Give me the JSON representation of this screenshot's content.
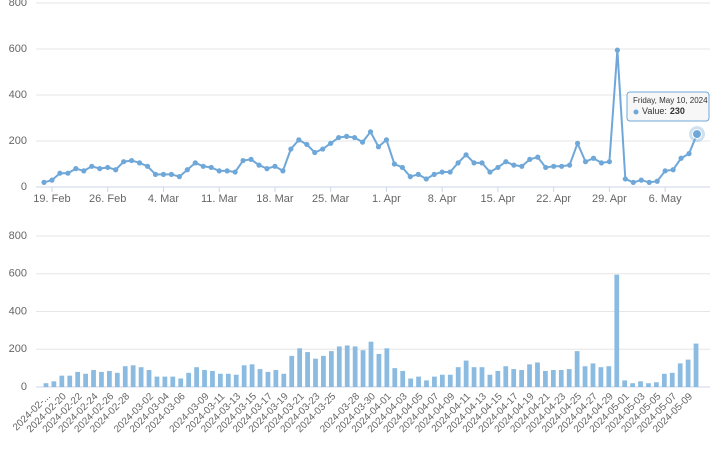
{
  "chart_data": [
    {
      "type": "line",
      "color": "#6fa8d8",
      "grid": true,
      "x": [
        "2024-02-18",
        "2024-02-19",
        "2024-02-20",
        "2024-02-21",
        "2024-02-22",
        "2024-02-23",
        "2024-02-24",
        "2024-02-25",
        "2024-02-26",
        "2024-02-27",
        "2024-02-28",
        "2024-02-29",
        "2024-03-01",
        "2024-03-02",
        "2024-03-03",
        "2024-03-04",
        "2024-03-05",
        "2024-03-06",
        "2024-03-07",
        "2024-03-08",
        "2024-03-09",
        "2024-03-10",
        "2024-03-11",
        "2024-03-12",
        "2024-03-13",
        "2024-03-14",
        "2024-03-15",
        "2024-03-16",
        "2024-03-17",
        "2024-03-18",
        "2024-03-19",
        "2024-03-20",
        "2024-03-21",
        "2024-03-22",
        "2024-03-23",
        "2024-03-24",
        "2024-03-25",
        "2024-03-26",
        "2024-03-27",
        "2024-03-28",
        "2024-03-29",
        "2024-03-30",
        "2024-03-31",
        "2024-04-01",
        "2024-04-02",
        "2024-04-03",
        "2024-04-04",
        "2024-04-05",
        "2024-04-06",
        "2024-04-07",
        "2024-04-08",
        "2024-04-09",
        "2024-04-10",
        "2024-04-11",
        "2024-04-12",
        "2024-04-13",
        "2024-04-14",
        "2024-04-15",
        "2024-04-16",
        "2024-04-17",
        "2024-04-18",
        "2024-04-19",
        "2024-04-20",
        "2024-04-21",
        "2024-04-22",
        "2024-04-23",
        "2024-04-24",
        "2024-04-25",
        "2024-04-26",
        "2024-04-27",
        "2024-04-28",
        "2024-04-29",
        "2024-04-30",
        "2024-05-01",
        "2024-05-02",
        "2024-05-03",
        "2024-05-04",
        "2024-05-05",
        "2024-05-06",
        "2024-05-07",
        "2024-05-08",
        "2024-05-09",
        "2024-05-10"
      ],
      "values": [
        20,
        30,
        60,
        60,
        80,
        70,
        90,
        80,
        85,
        75,
        110,
        115,
        105,
        90,
        55,
        55,
        55,
        45,
        75,
        105,
        90,
        85,
        70,
        70,
        65,
        115,
        120,
        95,
        80,
        90,
        70,
        165,
        205,
        185,
        150,
        165,
        190,
        215,
        220,
        215,
        195,
        240,
        175,
        205,
        100,
        85,
        45,
        55,
        35,
        55,
        65,
        65,
        105,
        140,
        105,
        105,
        65,
        85,
        110,
        95,
        90,
        120,
        130,
        85,
        90,
        90,
        95,
        190,
        110,
        125,
        105,
        110,
        595,
        35,
        20,
        30,
        20,
        25,
        70,
        75,
        125,
        145,
        230
      ],
      "ylim": [
        0,
        800
      ],
      "yticks": [
        0,
        200,
        400,
        600,
        800
      ],
      "xticks": [
        {
          "value": "2024-02-19",
          "label": "19. Feb"
        },
        {
          "value": "2024-02-26",
          "label": "26. Feb"
        },
        {
          "value": "2024-03-04",
          "label": "4. Mar"
        },
        {
          "value": "2024-03-11",
          "label": "11. Mar"
        },
        {
          "value": "2024-03-18",
          "label": "18. Mar"
        },
        {
          "value": "2024-03-25",
          "label": "25. Mar"
        },
        {
          "value": "2024-04-01",
          "label": "1. Apr"
        },
        {
          "value": "2024-04-08",
          "label": "8. Apr"
        },
        {
          "value": "2024-04-15",
          "label": "15. Apr"
        },
        {
          "value": "2024-04-22",
          "label": "22. Apr"
        },
        {
          "value": "2024-04-29",
          "label": "29. Apr"
        },
        {
          "value": "2024-05-06",
          "label": "6. May"
        }
      ],
      "tooltip": {
        "title": "Friday, May 10, 2024",
        "label": "Value:"
      }
    },
    {
      "type": "bar",
      "color": "#8bbbe0",
      "grid": true,
      "categories": [
        "2024-02-...",
        null,
        "2024-02-20",
        null,
        "2024-02-22",
        null,
        "2024-02-24",
        null,
        "2024-02-26",
        null,
        "2024-02-28",
        null,
        null,
        "2024-03-02",
        null,
        "2024-03-04",
        null,
        "2024-03-06",
        null,
        null,
        "2024-03-09",
        null,
        "2024-03-11",
        null,
        "2024-03-13",
        null,
        "2024-03-15",
        null,
        "2024-03-17",
        null,
        "2024-03-19",
        null,
        "2024-03-21",
        null,
        "2024-03-23",
        null,
        "2024-03-25",
        null,
        null,
        "2024-03-28",
        null,
        "2024-03-30",
        null,
        "2024-04-01",
        null,
        "2024-04-03",
        null,
        "2024-04-05",
        null,
        "2024-04-07",
        null,
        "2024-04-09",
        null,
        "2024-04-11",
        null,
        "2024-04-13",
        null,
        "2024-04-15",
        null,
        "2024-04-17",
        null,
        "2024-04-19",
        null,
        "2024-04-21",
        null,
        "2024-04-23",
        null,
        "2024-04-25",
        null,
        "2024-04-27",
        null,
        "2024-04-29",
        null,
        "2024-05-01",
        null,
        "2024-05-03",
        null,
        "2024-05-05",
        null,
        "2024-05-07",
        null,
        "2024-05-09",
        null
      ],
      "values": [
        20,
        30,
        60,
        60,
        80,
        70,
        90,
        80,
        85,
        75,
        110,
        115,
        105,
        90,
        55,
        55,
        55,
        45,
        75,
        105,
        90,
        85,
        70,
        70,
        65,
        115,
        120,
        95,
        80,
        90,
        70,
        165,
        205,
        185,
        150,
        165,
        190,
        215,
        220,
        215,
        195,
        240,
        175,
        205,
        100,
        85,
        45,
        55,
        35,
        55,
        65,
        65,
        105,
        140,
        105,
        105,
        65,
        85,
        110,
        95,
        90,
        120,
        130,
        85,
        90,
        90,
        95,
        190,
        110,
        125,
        105,
        110,
        595,
        35,
        20,
        30,
        20,
        25,
        70,
        75,
        125,
        145,
        230
      ],
      "ylim": [
        0,
        800
      ],
      "yticks": [
        0,
        200,
        400,
        600,
        800
      ]
    }
  ]
}
